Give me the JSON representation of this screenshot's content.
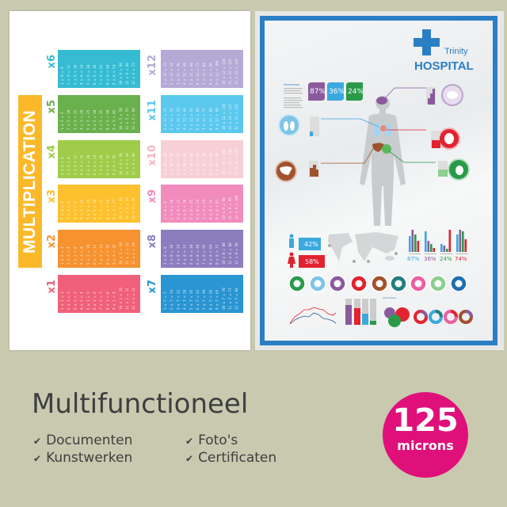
{
  "left_poster": {
    "banner_text": "MULTIPLICATION",
    "tables": [
      {
        "label": "x6",
        "n": 6,
        "color": "#35bcd3"
      },
      {
        "label": "x5",
        "n": 5,
        "color": "#6ab04c"
      },
      {
        "label": "x4",
        "n": 4,
        "color": "#9fcc4a"
      },
      {
        "label": "x3",
        "n": 3,
        "color": "#fdc12e"
      },
      {
        "label": "x2",
        "n": 2,
        "color": "#f6922f"
      },
      {
        "label": "x1",
        "n": 1,
        "color": "#f0607a"
      },
      {
        "label": "x12",
        "n": 12,
        "color": "#b5a9d6"
      },
      {
        "label": "x11",
        "n": 11,
        "color": "#5bc8ee"
      },
      {
        "label": "x10",
        "n": 10,
        "color": "#f7d0d6"
      },
      {
        "label": "x9",
        "n": 9,
        "color": "#f18cbc"
      },
      {
        "label": "x8",
        "n": 8,
        "color": "#8c7dbf"
      },
      {
        "label": "x7",
        "n": 7,
        "color": "#2a95d3"
      }
    ]
  },
  "right_poster": {
    "brand_top": "Trinity",
    "brand_main": "HOSPITAL",
    "info_label": "Information",
    "top_stats": [
      "87%",
      "36%",
      "24%"
    ],
    "male_pct": "42%",
    "female_pct": "58%",
    "bar_stats": [
      "87%",
      "36%",
      "24%",
      "74%"
    ],
    "info_label_2": "Information",
    "colors": {
      "frame": "#2a7fc4",
      "purple": "#8b5a9c",
      "blue": "#3aa9df",
      "green": "#2a9a4a",
      "red": "#e2232f",
      "brown": "#a0522d"
    }
  },
  "footer": {
    "title": "Multifunctioneel",
    "features": [
      "Documenten",
      "Kunstwerken",
      "Foto's",
      "Certificaten"
    ],
    "check_icon": "checkmark-icon",
    "badge": {
      "value": "125",
      "unit": "microns",
      "color": "#e0107a"
    }
  }
}
